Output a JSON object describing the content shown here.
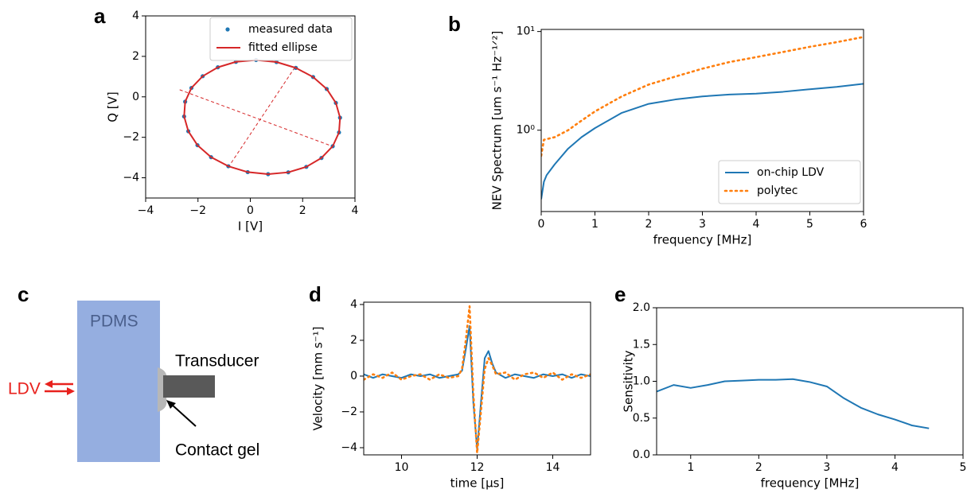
{
  "chart_data": [
    {
      "panel_label": "a",
      "type": "scatter",
      "xlabel": "I [V]",
      "ylabel": "Q [V]",
      "xlim": [
        -4,
        4
      ],
      "ylim": [
        -5,
        4
      ],
      "xticks": [
        {
          "value": -4,
          "label": "−4"
        },
        {
          "value": -2,
          "label": "−2"
        },
        0,
        2,
        4
      ],
      "yticks": [
        {
          "value": -4,
          "label": "−4"
        },
        {
          "value": -2,
          "label": "−2"
        },
        0,
        2,
        4
      ],
      "legend": "upper right",
      "series": [
        {
          "name": "measured data",
          "color": "#1f77b4",
          "style": "markers",
          "x": [
            3.15,
            3.39,
            3.43,
            3.27,
            2.92,
            2.4,
            1.74,
            1.0,
            0.22,
            -0.55,
            -1.24,
            -1.82,
            -2.25,
            -2.49,
            -2.53,
            -2.37,
            -2.02,
            -1.5,
            -0.84,
            -0.1,
            0.68,
            1.45,
            2.14,
            2.72
          ],
          "values": [
            -2.44,
            -1.76,
            -1.03,
            -0.3,
            0.39,
            0.98,
            1.43,
            1.72,
            1.82,
            1.73,
            1.46,
            1.02,
            0.44,
            -0.24,
            -0.97,
            -1.7,
            -2.39,
            -2.98,
            -3.43,
            -3.72,
            -3.82,
            -3.73,
            -3.46,
            -3.02
          ]
        },
        {
          "name": "fitted ellipse",
          "color": "#d62728",
          "style": "line",
          "x": [
            3.15,
            3.39,
            3.43,
            3.27,
            2.92,
            2.4,
            1.74,
            1.0,
            0.22,
            -0.55,
            -1.24,
            -1.82,
            -2.25,
            -2.49,
            -2.53,
            -2.37,
            -2.02,
            -1.5,
            -0.84,
            -0.1,
            0.68,
            1.45,
            2.14,
            2.72,
            3.15
          ],
          "values": [
            -2.44,
            -1.76,
            -1.03,
            -0.3,
            0.39,
            0.98,
            1.43,
            1.72,
            1.82,
            1.73,
            1.46,
            1.02,
            0.44,
            -0.24,
            -0.97,
            -1.7,
            -2.39,
            -2.98,
            -3.43,
            -3.72,
            -3.82,
            -3.73,
            -3.46,
            -3.02,
            -2.44
          ]
        }
      ],
      "reference_lines": [
        {
          "color": "#d62728",
          "style": "dashed",
          "x": [
            -2.7,
            3.15
          ],
          "values": [
            0.35,
            -2.45
          ]
        },
        {
          "color": "#d62728",
          "style": "dashed",
          "x": [
            1.7,
            -0.8
          ],
          "values": [
            1.45,
            -3.4
          ]
        }
      ]
    },
    {
      "panel_label": "b",
      "type": "line",
      "xlabel": "frequency [MHz]",
      "ylabel": "NEV Spectrum [um s⁻¹ Hz⁻¹ᐟ²]",
      "xlim": [
        0,
        6
      ],
      "ylim": [
        0.15,
        10.5
      ],
      "yscale": "log",
      "xticks": [
        0,
        1,
        2,
        3,
        4,
        5,
        6
      ],
      "yticks": [
        {
          "value": 1,
          "label": "10⁰"
        },
        {
          "value": 10,
          "label": "10¹"
        }
      ],
      "legend": "lower right",
      "series": [
        {
          "name": "on-chip LDV",
          "color": "#1f77b4",
          "style": "line",
          "x": [
            0,
            0.05,
            0.1,
            0.25,
            0.5,
            0.75,
            1,
            1.5,
            2,
            2.5,
            3,
            3.5,
            4,
            4.5,
            5,
            5.5,
            6
          ],
          "values": [
            0.2,
            0.3,
            0.35,
            0.45,
            0.65,
            0.85,
            1.05,
            1.5,
            1.85,
            2.05,
            2.2,
            2.3,
            2.35,
            2.45,
            2.6,
            2.75,
            2.95
          ]
        },
        {
          "name": "polytec",
          "color": "#ff7f0e",
          "style": "dotted",
          "x": [
            0,
            0.05,
            0.25,
            0.5,
            0.75,
            1,
            1.5,
            2,
            2.5,
            3,
            3.5,
            4,
            4.5,
            5,
            5.5,
            6
          ],
          "values": [
            0.55,
            0.8,
            0.85,
            1.0,
            1.25,
            1.55,
            2.2,
            2.9,
            3.5,
            4.2,
            4.9,
            5.5,
            6.2,
            7.0,
            7.8,
            8.8
          ]
        }
      ]
    },
    {
      "panel_label": "d",
      "type": "line",
      "xlabel": "time [μs]",
      "ylabel": "Velocity [mm s⁻¹]",
      "xlim": [
        9,
        15
      ],
      "ylim": [
        -4.4,
        4.13
      ],
      "xticks": [
        10,
        12,
        14
      ],
      "yticks": [
        {
          "value": -4,
          "label": "−4"
        },
        {
          "value": -2,
          "label": "−2"
        },
        0,
        2,
        4
      ],
      "series": [
        {
          "color": "#1f77b4",
          "style": "line",
          "x": [
            9,
            9.25,
            9.5,
            9.75,
            10,
            10.25,
            10.5,
            10.75,
            11,
            11.25,
            11.5,
            11.6,
            11.7,
            11.8,
            11.9,
            12,
            12.1,
            12.2,
            12.3,
            12.4,
            12.5,
            12.75,
            13,
            13.25,
            13.5,
            13.75,
            14,
            14.25,
            14.5,
            14.75,
            15
          ],
          "values": [
            0.1,
            -0.1,
            0.1,
            0,
            -0.1,
            0.1,
            0,
            0.1,
            -0.1,
            0,
            0.1,
            0.3,
            1.5,
            2.8,
            -1.5,
            -4.1,
            -1.5,
            1.0,
            1.4,
            0.7,
            0.2,
            -0.1,
            0.1,
            0,
            -0.1,
            0.1,
            0,
            0.1,
            -0.1,
            0.1,
            0
          ]
        },
        {
          "color": "#ff7f0e",
          "style": "dotted",
          "x": [
            9,
            9.25,
            9.5,
            9.75,
            10,
            10.25,
            10.5,
            10.75,
            11,
            11.25,
            11.5,
            11.6,
            11.7,
            11.8,
            11.9,
            12,
            12.1,
            12.2,
            12.3,
            12.4,
            12.5,
            12.75,
            13,
            13.25,
            13.5,
            13.75,
            14,
            14.25,
            14.5,
            14.75,
            15
          ],
          "values": [
            -0.2,
            0.1,
            -0.1,
            0.2,
            -0.2,
            0,
            0.1,
            -0.2,
            0.1,
            -0.1,
            0,
            0.4,
            2.0,
            3.9,
            -1.0,
            -4.3,
            -2.0,
            0.4,
            1.0,
            0.6,
            0.1,
            0.2,
            -0.2,
            0.1,
            0.2,
            -0.1,
            0.2,
            -0.2,
            0.1,
            -0.1,
            0.1
          ]
        }
      ]
    },
    {
      "panel_label": "e",
      "type": "line",
      "xlabel": "frequency [MHz]",
      "ylabel": "Sensitivity",
      "xlim": [
        0.5,
        5
      ],
      "ylim": [
        0,
        2
      ],
      "xticks": [
        1,
        2,
        3,
        4,
        5
      ],
      "yticks": [
        {
          "value": 0,
          "label": "0.0"
        },
        {
          "value": 0.5,
          "label": "0.5"
        },
        {
          "value": 1,
          "label": "1.0"
        },
        {
          "value": 1.5,
          "label": "1.5"
        },
        {
          "value": 2,
          "label": "2.0"
        }
      ],
      "series": [
        {
          "color": "#1f77b4",
          "style": "line",
          "x": [
            0.5,
            0.75,
            1,
            1.25,
            1.5,
            1.75,
            2,
            2.25,
            2.5,
            2.75,
            3,
            3.25,
            3.5,
            3.75,
            4,
            4.25,
            4.5
          ],
          "values": [
            0.86,
            0.95,
            0.91,
            0.95,
            1.0,
            1.01,
            1.02,
            1.02,
            1.03,
            0.99,
            0.93,
            0.77,
            0.64,
            0.55,
            0.48,
            0.4,
            0.36
          ]
        }
      ]
    }
  ],
  "diagram": {
    "panel_label": "c",
    "block": "PDMS",
    "device": "Transducer",
    "beam": "LDV",
    "interface": "Contact gel"
  }
}
